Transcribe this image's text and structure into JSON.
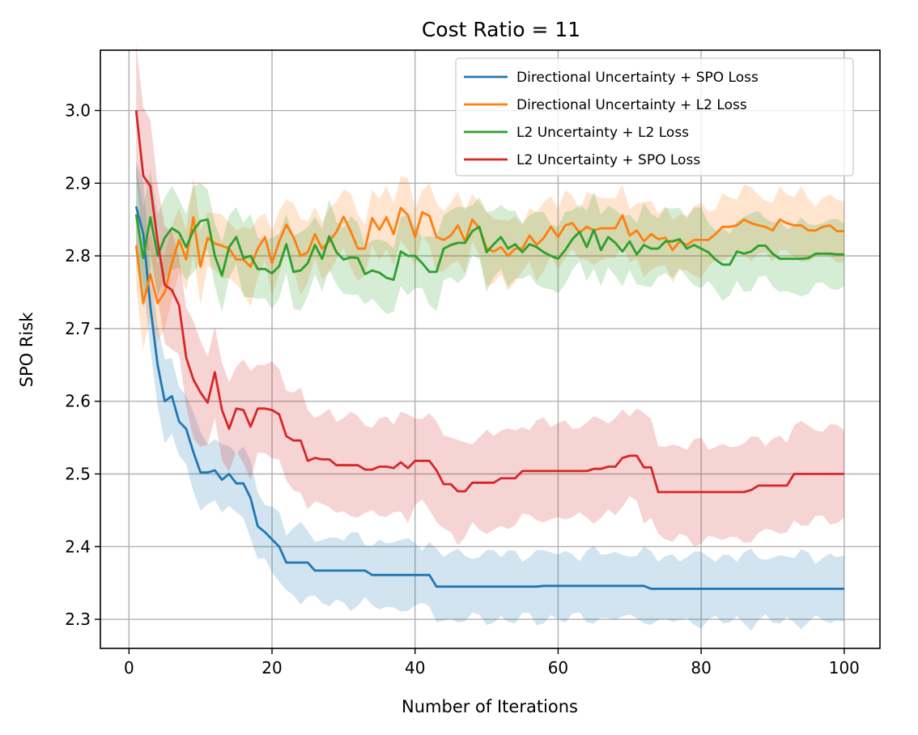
{
  "chart_data": {
    "type": "line",
    "title": "Cost Ratio = 11",
    "xlabel": "Number of Iterations",
    "ylabel": "SPO Risk",
    "xlim": [
      -4,
      105
    ],
    "ylim": [
      2.26,
      3.083
    ],
    "xticks": [
      0,
      20,
      40,
      60,
      80,
      100
    ],
    "yticks": [
      2.3,
      2.4,
      2.5,
      2.6,
      2.7,
      2.8,
      2.9,
      3.0
    ],
    "xtick_labels": [
      "0",
      "20",
      "40",
      "60",
      "80",
      "100"
    ],
    "ytick_labels": [
      "2.3",
      "2.4",
      "2.5",
      "2.6",
      "2.7",
      "2.8",
      "2.9",
      "3.0"
    ],
    "grid": true,
    "legend_position": "top-right",
    "series": [
      {
        "name": "Directional Uncertainty + SPO Loss",
        "color": "#1f77b4",
        "keypoints": [
          [
            1,
            2.868
          ],
          [
            2,
            2.83
          ],
          [
            3,
            2.73
          ],
          [
            4,
            2.65
          ],
          [
            5,
            2.6
          ],
          [
            6,
            2.607
          ],
          [
            7,
            2.572
          ],
          [
            8,
            2.562
          ],
          [
            9,
            2.53
          ],
          [
            10,
            2.502
          ],
          [
            11,
            2.502
          ],
          [
            12,
            2.505
          ],
          [
            13,
            2.492
          ],
          [
            14,
            2.5
          ],
          [
            15,
            2.487
          ],
          [
            16,
            2.487
          ],
          [
            17,
            2.467
          ],
          [
            18,
            2.428
          ],
          [
            19,
            2.42
          ],
          [
            20,
            2.41
          ],
          [
            21,
            2.4
          ],
          [
            22,
            2.378
          ],
          [
            25,
            2.378
          ],
          [
            26,
            2.367
          ],
          [
            33,
            2.367
          ],
          [
            34,
            2.361
          ],
          [
            42,
            2.361
          ],
          [
            43,
            2.345
          ],
          [
            57,
            2.345
          ],
          [
            58,
            2.346
          ],
          [
            72,
            2.346
          ],
          [
            73,
            2.342
          ],
          [
            100,
            2.342
          ]
        ],
        "band": 0.045
      },
      {
        "name": "Directional Uncertainty + L2 Loss",
        "color": "#ff7f0e",
        "keypoints": [
          [
            1,
            2.814
          ],
          [
            2,
            2.735
          ],
          [
            3,
            2.775
          ],
          [
            4,
            2.735
          ],
          [
            5,
            2.75
          ],
          [
            6,
            2.79
          ],
          [
            7,
            2.822
          ],
          [
            8,
            2.795
          ],
          [
            9,
            2.853
          ],
          [
            10,
            2.785
          ],
          [
            11,
            2.825
          ],
          [
            12,
            2.817
          ],
          [
            13,
            2.814
          ],
          [
            14,
            2.81
          ],
          [
            15,
            2.795
          ],
          [
            16,
            2.795
          ],
          [
            17,
            2.785
          ],
          [
            18,
            2.81
          ],
          [
            19,
            2.826
          ],
          [
            20,
            2.79
          ],
          [
            21,
            2.82
          ],
          [
            22,
            2.843
          ],
          [
            23,
            2.826
          ],
          [
            24,
            2.8
          ],
          [
            25,
            2.805
          ],
          [
            26,
            2.83
          ],
          [
            27,
            2.81
          ],
          [
            28,
            2.82
          ],
          [
            29,
            2.833
          ],
          [
            30,
            2.854
          ],
          [
            31,
            2.834
          ],
          [
            32,
            2.81
          ],
          [
            33,
            2.81
          ],
          [
            34,
            2.852
          ],
          [
            35,
            2.836
          ],
          [
            36,
            2.853
          ],
          [
            37,
            2.83
          ],
          [
            38,
            2.866
          ],
          [
            39,
            2.856
          ],
          [
            40,
            2.826
          ],
          [
            41,
            2.86
          ],
          [
            42,
            2.855
          ],
          [
            43,
            2.826
          ],
          [
            44,
            2.822
          ],
          [
            45,
            2.828
          ],
          [
            46,
            2.842
          ],
          [
            47,
            2.82
          ],
          [
            48,
            2.85
          ],
          [
            49,
            2.838
          ],
          [
            50,
            2.81
          ],
          [
            51,
            2.806
          ],
          [
            52,
            2.812
          ],
          [
            53,
            2.8
          ],
          [
            54,
            2.81
          ],
          [
            55,
            2.81
          ],
          [
            56,
            2.828
          ],
          [
            57,
            2.815
          ],
          [
            58,
            2.825
          ],
          [
            59,
            2.84
          ],
          [
            60,
            2.826
          ],
          [
            61,
            2.842
          ],
          [
            62,
            2.845
          ],
          [
            63,
            2.832
          ],
          [
            64,
            2.84
          ],
          [
            65,
            2.835
          ],
          [
            66,
            2.838
          ],
          [
            67,
            2.838
          ],
          [
            68,
            2.838
          ],
          [
            69,
            2.856
          ],
          [
            70,
            2.828
          ],
          [
            71,
            2.835
          ],
          [
            72,
            2.82
          ],
          [
            73,
            2.83
          ],
          [
            74,
            2.823
          ],
          [
            75,
            2.825
          ],
          [
            76,
            2.808
          ],
          [
            77,
            2.82
          ],
          [
            78,
            2.815
          ],
          [
            79,
            2.822
          ],
          [
            80,
            2.822
          ],
          [
            81,
            2.822
          ],
          [
            82,
            2.83
          ],
          [
            83,
            2.84
          ],
          [
            84,
            2.84
          ],
          [
            85,
            2.842
          ],
          [
            86,
            2.85
          ],
          [
            87,
            2.845
          ],
          [
            88,
            2.842
          ],
          [
            89,
            2.84
          ],
          [
            90,
            2.835
          ],
          [
            91,
            2.85
          ],
          [
            92,
            2.845
          ],
          [
            93,
            2.842
          ],
          [
            94,
            2.842
          ],
          [
            95,
            2.835
          ],
          [
            96,
            2.835
          ],
          [
            97,
            2.84
          ],
          [
            98,
            2.842
          ],
          [
            99,
            2.834
          ],
          [
            100,
            2.834
          ]
        ],
        "band": 0.042
      },
      {
        "name": "L2 Uncertainty + L2 Loss",
        "color": "#2ca02c",
        "keypoints": [
          [
            1,
            2.857
          ],
          [
            2,
            2.797
          ],
          [
            3,
            2.853
          ],
          [
            4,
            2.8
          ],
          [
            5,
            2.825
          ],
          [
            6,
            2.838
          ],
          [
            7,
            2.832
          ],
          [
            8,
            2.812
          ],
          [
            9,
            2.835
          ],
          [
            10,
            2.848
          ],
          [
            11,
            2.85
          ],
          [
            12,
            2.8
          ],
          [
            13,
            2.773
          ],
          [
            14,
            2.812
          ],
          [
            15,
            2.826
          ],
          [
            16,
            2.797
          ],
          [
            17,
            2.8
          ],
          [
            18,
            2.782
          ],
          [
            19,
            2.782
          ],
          [
            20,
            2.776
          ],
          [
            21,
            2.786
          ],
          [
            22,
            2.816
          ],
          [
            23,
            2.778
          ],
          [
            24,
            2.78
          ],
          [
            25,
            2.79
          ],
          [
            26,
            2.815
          ],
          [
            27,
            2.796
          ],
          [
            28,
            2.827
          ],
          [
            29,
            2.805
          ],
          [
            30,
            2.795
          ],
          [
            31,
            2.798
          ],
          [
            32,
            2.797
          ],
          [
            33,
            2.775
          ],
          [
            34,
            2.78
          ],
          [
            35,
            2.777
          ],
          [
            36,
            2.77
          ],
          [
            37,
            2.767
          ],
          [
            38,
            2.806
          ],
          [
            39,
            2.8
          ],
          [
            40,
            2.8
          ],
          [
            41,
            2.79
          ],
          [
            42,
            2.778
          ],
          [
            43,
            2.778
          ],
          [
            44,
            2.81
          ],
          [
            45,
            2.815
          ],
          [
            46,
            2.818
          ],
          [
            47,
            2.818
          ],
          [
            48,
            2.834
          ],
          [
            49,
            2.84
          ],
          [
            50,
            2.805
          ],
          [
            51,
            2.816
          ],
          [
            52,
            2.826
          ],
          [
            53,
            2.81
          ],
          [
            54,
            2.816
          ],
          [
            55,
            2.805
          ],
          [
            56,
            2.816
          ],
          [
            57,
            2.812
          ],
          [
            58,
            2.805
          ],
          [
            59,
            2.8
          ],
          [
            60,
            2.796
          ],
          [
            61,
            2.808
          ],
          [
            62,
            2.823
          ],
          [
            63,
            2.833
          ],
          [
            64,
            2.812
          ],
          [
            65,
            2.836
          ],
          [
            66,
            2.808
          ],
          [
            67,
            2.826
          ],
          [
            68,
            2.818
          ],
          [
            69,
            2.806
          ],
          [
            70,
            2.82
          ],
          [
            71,
            2.802
          ],
          [
            72,
            2.815
          ],
          [
            73,
            2.81
          ],
          [
            74,
            2.81
          ],
          [
            75,
            2.82
          ],
          [
            76,
            2.82
          ],
          [
            77,
            2.823
          ],
          [
            78,
            2.81
          ],
          [
            79,
            2.815
          ],
          [
            80,
            2.81
          ],
          [
            81,
            2.805
          ],
          [
            82,
            2.795
          ],
          [
            83,
            2.788
          ],
          [
            84,
            2.788
          ],
          [
            85,
            2.806
          ],
          [
            86,
            2.803
          ],
          [
            87,
            2.806
          ],
          [
            88,
            2.814
          ],
          [
            89,
            2.814
          ],
          [
            90,
            2.803
          ],
          [
            91,
            2.796
          ],
          [
            92,
            2.796
          ],
          [
            93,
            2.796
          ],
          [
            94,
            2.796
          ],
          [
            95,
            2.797
          ],
          [
            96,
            2.803
          ],
          [
            97,
            2.803
          ],
          [
            98,
            2.803
          ],
          [
            99,
            2.802
          ],
          [
            100,
            2.802
          ]
        ],
        "band": 0.046
      },
      {
        "name": "L2 Uncertainty + SPO Loss",
        "color": "#d62728",
        "keypoints": [
          [
            1,
            3.0
          ],
          [
            2,
            2.91
          ],
          [
            3,
            2.896
          ],
          [
            4,
            2.82
          ],
          [
            5,
            2.76
          ],
          [
            6,
            2.753
          ],
          [
            7,
            2.732
          ],
          [
            8,
            2.66
          ],
          [
            9,
            2.63
          ],
          [
            10,
            2.612
          ],
          [
            11,
            2.598
          ],
          [
            12,
            2.64
          ],
          [
            13,
            2.588
          ],
          [
            14,
            2.562
          ],
          [
            15,
            2.59
          ],
          [
            16,
            2.588
          ],
          [
            17,
            2.565
          ],
          [
            18,
            2.59
          ],
          [
            19,
            2.59
          ],
          [
            20,
            2.588
          ],
          [
            21,
            2.582
          ],
          [
            22,
            2.552
          ],
          [
            23,
            2.546
          ],
          [
            24,
            2.546
          ],
          [
            25,
            2.518
          ],
          [
            26,
            2.522
          ],
          [
            27,
            2.52
          ],
          [
            28,
            2.52
          ],
          [
            29,
            2.512
          ],
          [
            32,
            2.512
          ],
          [
            33,
            2.506
          ],
          [
            34,
            2.506
          ],
          [
            35,
            2.51
          ],
          [
            36,
            2.51
          ],
          [
            37,
            2.508
          ],
          [
            38,
            2.516
          ],
          [
            39,
            2.508
          ],
          [
            40,
            2.518
          ],
          [
            42,
            2.518
          ],
          [
            43,
            2.505
          ],
          [
            44,
            2.486
          ],
          [
            45,
            2.486
          ],
          [
            46,
            2.476
          ],
          [
            47,
            2.476
          ],
          [
            48,
            2.488
          ],
          [
            51,
            2.488
          ],
          [
            52,
            2.494
          ],
          [
            54,
            2.494
          ],
          [
            55,
            2.504
          ],
          [
            64,
            2.504
          ],
          [
            65,
            2.507
          ],
          [
            66,
            2.507
          ],
          [
            67,
            2.51
          ],
          [
            68,
            2.51
          ],
          [
            69,
            2.522
          ],
          [
            70,
            2.525
          ],
          [
            71,
            2.525
          ],
          [
            72,
            2.509
          ],
          [
            73,
            2.509
          ],
          [
            74,
            2.475
          ],
          [
            86,
            2.475
          ],
          [
            87,
            2.478
          ],
          [
            88,
            2.484
          ],
          [
            92,
            2.484
          ],
          [
            93,
            2.5
          ],
          [
            100,
            2.5
          ]
        ],
        "band": 0.065
      }
    ]
  }
}
